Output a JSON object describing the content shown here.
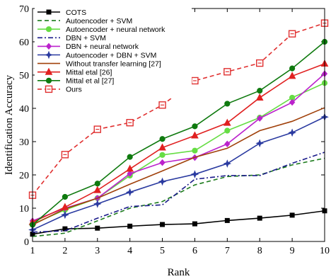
{
  "chart_data": {
    "type": "line",
    "title": "",
    "xlabel": "Rank",
    "ylabel": "Identification Accuracy",
    "x": [
      1,
      2,
      3,
      4,
      5,
      6,
      7,
      8,
      9,
      10
    ],
    "xlim": [
      1,
      10
    ],
    "ylim": [
      0,
      70
    ],
    "xticks": [
      "1",
      "2",
      "3",
      "4",
      "5",
      "6",
      "7",
      "8",
      "9",
      "10"
    ],
    "yticks": [
      "0",
      "10",
      "20",
      "30",
      "40",
      "50",
      "60",
      "70"
    ],
    "grid": false,
    "legend_position": "top-left",
    "series": [
      {
        "name": "COTS",
        "color": "#000000",
        "dash": "solid",
        "marker": "square-filled",
        "values": [
          2.2,
          3.8,
          4.0,
          4.6,
          5.1,
          5.3,
          6.3,
          7.0,
          7.9,
          9.2
        ]
      },
      {
        "name": "Autoencoder + SVM",
        "color": "#1a7a1a",
        "dash": "dashed",
        "marker": "none",
        "values": [
          1.5,
          2.5,
          6.2,
          10.0,
          12.0,
          17.0,
          19.5,
          20.0,
          23.0,
          25.0
        ]
      },
      {
        "name": "Autoencoder + neural network",
        "color": "#66dd44",
        "dash": "solid",
        "marker": "circle-filled",
        "values": [
          5.2,
          9.5,
          13.0,
          19.8,
          26.0,
          27.3,
          33.3,
          37.2,
          43.2,
          47.6
        ]
      },
      {
        "name": "DBN + SVM",
        "color": "#1a1a8a",
        "dash": "dashdot",
        "marker": "none",
        "values": [
          2.8,
          3.2,
          7.0,
          10.5,
          11.0,
          18.7,
          19.8,
          19.8,
          23.5,
          26.8
        ]
      },
      {
        "name": "DBN + neural network",
        "color": "#bb22cc",
        "dash": "solid",
        "marker": "diamond-filled",
        "values": [
          6.2,
          10.0,
          13.0,
          20.4,
          23.7,
          25.2,
          29.3,
          37.0,
          41.8,
          50.4
        ]
      },
      {
        "name": "Autoencoder + DBN + SVM",
        "color": "#2a3aa0",
        "dash": "solid",
        "marker": "star",
        "values": [
          3.5,
          8.0,
          11.3,
          14.8,
          18.0,
          20.2,
          23.4,
          29.5,
          32.7,
          37.4
        ]
      },
      {
        "name": "Without transfer learning [27]",
        "color": "#a0400a",
        "dash": "solid",
        "marker": "none",
        "values": [
          5.0,
          9.8,
          13.0,
          17.2,
          21.2,
          25.3,
          28.0,
          33.3,
          36.1,
          40.2
        ]
      },
      {
        "name": "Mittal etal [26]",
        "color": "#e02020",
        "dash": "solid",
        "marker": "triangle-filled",
        "values": [
          5.8,
          10.3,
          15.4,
          21.8,
          28.2,
          31.8,
          35.6,
          43.2,
          49.7,
          53.4
        ]
      },
      {
        "name": "Mittal et al [27]",
        "color": "#0f7a0f",
        "dash": "solid",
        "marker": "circle-filled",
        "values": [
          5.0,
          13.4,
          17.4,
          25.4,
          30.8,
          34.6,
          41.4,
          45.3,
          52.0,
          60.0
        ]
      },
      {
        "name": "Ours",
        "color": "#e03030",
        "dash": "dashed",
        "marker": "square-open",
        "values": [
          13.9,
          26.1,
          33.7,
          35.7,
          41.0,
          48.3,
          51.0,
          53.6,
          62.4,
          65.6
        ]
      }
    ]
  }
}
